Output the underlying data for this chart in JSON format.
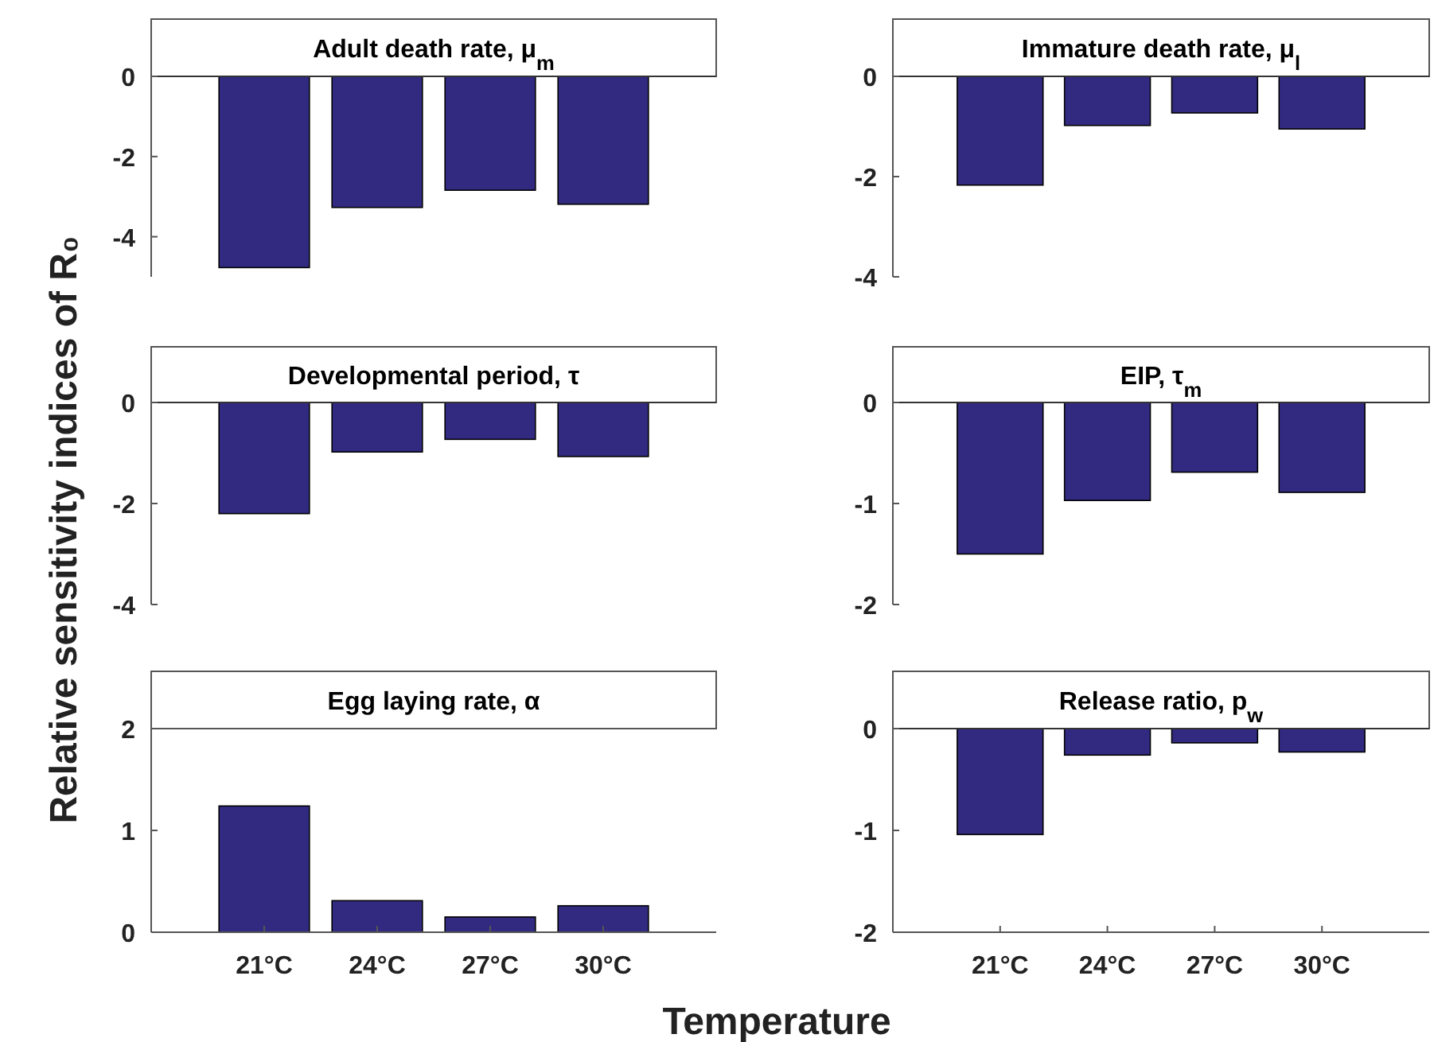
{
  "chart_data": [
    {
      "type": "bar",
      "title": "Adult death rate, μ$_{m}$",
      "ylabel": "Relative sensitivity indices of R₀",
      "categories": [
        null,
        null,
        null,
        null
      ],
      "values": [
        -4.77,
        -3.27,
        -2.84,
        -3.19
      ],
      "color": "#312a80",
      "ylim": [
        -5,
        0
      ],
      "yticks": [
        -4,
        -2,
        0
      ],
      "tick_labels": "y"
    },
    {
      "type": "bar",
      "title": "Immature death rate, μ$_{l}$",
      "categories": [
        null,
        null,
        null,
        null
      ],
      "values": [
        -2.17,
        -0.98,
        -0.73,
        -1.05
      ],
      "color": "#312a80",
      "ylim": [
        -4,
        0
      ],
      "yticks": [
        -4,
        -2,
        0
      ],
      "tick_labels": "y"
    },
    {
      "type": "bar",
      "title": "Developmental period, τ",
      "categories": [
        null,
        null,
        null,
        null
      ],
      "values": [
        -2.2,
        -0.98,
        -0.73,
        -1.07
      ],
      "color": "#312a80",
      "ylim": [
        -4,
        0
      ],
      "yticks": [
        -4,
        -2,
        0
      ],
      "tick_labels": "y"
    },
    {
      "type": "bar",
      "title": "EIP, τ$_{m}$",
      "categories": [
        null,
        null,
        null,
        null
      ],
      "values": [
        -1.5,
        -0.97,
        -0.69,
        -0.89
      ],
      "color": "#312a80",
      "ylim": [
        -2,
        0
      ],
      "yticks": [
        -2,
        -1,
        0
      ],
      "tick_labels": "y"
    },
    {
      "type": "bar",
      "title": "Egg laying rate, α",
      "xlabel": "Temperature",
      "categories": [
        "21°C",
        "24°C",
        "27°C",
        "30°C"
      ],
      "values": [
        1.24,
        0.31,
        0.15,
        0.26
      ],
      "color": "#312a80",
      "ylim": [
        0,
        2
      ],
      "yticks": [
        0,
        1,
        2
      ]
    },
    {
      "type": "bar",
      "title": "Release ratio, p$_{w}$",
      "categories": [
        "21°C",
        "24°C",
        "27°C",
        "30°C"
      ],
      "values": [
        -1.04,
        -0.26,
        -0.14,
        -0.23
      ],
      "color": "#312a80",
      "ylim": [
        -2,
        0
      ],
      "yticks": [
        -2,
        -1,
        0
      ]
    }
  ]
}
